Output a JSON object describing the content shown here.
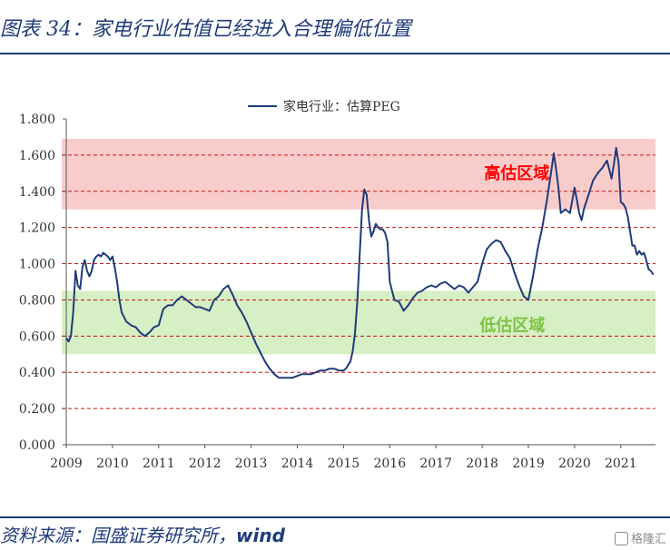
{
  "header": {
    "title": "图表 34：家电行业估值已经进入合理偏低位置"
  },
  "footer": {
    "source_prefix": "资料来源：国盛证券研究所，",
    "source_brand": "wind"
  },
  "watermark": {
    "text": "格隆汇"
  },
  "colors": {
    "line": "#1f3b7a",
    "high_band": "#f9cccc",
    "low_band": "#d6efc4",
    "ref_line": "#cc1111",
    "high_label": "#ff0000",
    "low_label": "#7cc242",
    "axis": "#555555"
  },
  "chart_data": {
    "type": "line",
    "title": "",
    "xlabel": "",
    "ylabel": "",
    "legend": {
      "position": "top",
      "entries": [
        "家电行业：估算PEG"
      ]
    },
    "x_ticks": [
      "2009",
      "2010",
      "2011",
      "2012",
      "2013",
      "2014",
      "2015",
      "2016",
      "2017",
      "2018",
      "2019",
      "2020",
      "2021"
    ],
    "y_ticks": [
      "0.000",
      "0.200",
      "0.400",
      "0.600",
      "0.800",
      "1.000",
      "1.200",
      "1.400",
      "1.600",
      "1.800"
    ],
    "xlim": [
      2009.0,
      2021.75
    ],
    "ylim": [
      0,
      1.8
    ],
    "grid": false,
    "reference_lines": [
      0.2,
      0.4,
      0.6,
      0.8,
      1.0,
      1.2,
      1.4,
      1.6
    ],
    "bands": [
      {
        "name": "高估区域",
        "from": 1.3,
        "to": 1.69
      },
      {
        "name": "低估区域",
        "from": 0.5,
        "to": 0.85
      }
    ],
    "series": [
      {
        "name": "家电行业：估算PEG",
        "x": [
          2009.0,
          2009.05,
          2009.1,
          2009.15,
          2009.2,
          2009.25,
          2009.3,
          2009.35,
          2009.4,
          2009.45,
          2009.5,
          2009.55,
          2009.6,
          2009.65,
          2009.7,
          2009.75,
          2009.8,
          2009.85,
          2009.9,
          2009.95,
          2010.0,
          2010.05,
          2010.1,
          2010.15,
          2010.2,
          2010.3,
          2010.4,
          2010.5,
          2010.6,
          2010.7,
          2010.8,
          2010.9,
          2011.0,
          2011.1,
          2011.2,
          2011.3,
          2011.4,
          2011.5,
          2011.6,
          2011.7,
          2011.8,
          2011.9,
          2012.0,
          2012.1,
          2012.2,
          2012.3,
          2012.4,
          2012.5,
          2012.6,
          2012.7,
          2012.8,
          2012.9,
          2013.0,
          2013.1,
          2013.2,
          2013.3,
          2013.4,
          2013.5,
          2013.6,
          2013.7,
          2013.8,
          2013.9,
          2014.0,
          2014.1,
          2014.2,
          2014.3,
          2014.4,
          2014.5,
          2014.6,
          2014.7,
          2014.8,
          2014.9,
          2015.0,
          2015.05,
          2015.1,
          2015.15,
          2015.2,
          2015.25,
          2015.3,
          2015.35,
          2015.4,
          2015.45,
          2015.5,
          2015.55,
          2015.6,
          2015.65,
          2015.7,
          2015.75,
          2015.8,
          2015.85,
          2015.9,
          2015.95,
          2016.0,
          2016.1,
          2016.2,
          2016.3,
          2016.4,
          2016.5,
          2016.6,
          2016.7,
          2016.8,
          2016.9,
          2017.0,
          2017.1,
          2017.2,
          2017.3,
          2017.4,
          2017.5,
          2017.6,
          2017.7,
          2017.8,
          2017.9,
          2018.0,
          2018.1,
          2018.2,
          2018.3,
          2018.4,
          2018.5,
          2018.6,
          2018.7,
          2018.8,
          2018.9,
          2019.0,
          2019.1,
          2019.2,
          2019.3,
          2019.4,
          2019.5,
          2019.55,
          2019.6,
          2019.65,
          2019.7,
          2019.8,
          2019.9,
          2020.0,
          2020.05,
          2020.1,
          2020.15,
          2020.2,
          2020.3,
          2020.4,
          2020.5,
          2020.6,
          2020.7,
          2020.75,
          2020.8,
          2020.85,
          2020.9,
          2020.95,
          2021.0,
          2021.05,
          2021.1,
          2021.15,
          2021.2,
          2021.25,
          2021.3,
          2021.35,
          2021.4,
          2021.45,
          2021.5,
          2021.55,
          2021.6,
          2021.65,
          2021.7
        ],
        "values": [
          0.59,
          0.57,
          0.6,
          0.73,
          0.96,
          0.88,
          0.86,
          0.98,
          1.02,
          0.96,
          0.93,
          0.96,
          1.02,
          1.04,
          1.05,
          1.04,
          1.06,
          1.05,
          1.04,
          1.02,
          1.04,
          0.98,
          0.9,
          0.8,
          0.73,
          0.68,
          0.66,
          0.65,
          0.62,
          0.6,
          0.62,
          0.65,
          0.66,
          0.75,
          0.77,
          0.77,
          0.8,
          0.82,
          0.8,
          0.78,
          0.76,
          0.76,
          0.75,
          0.74,
          0.8,
          0.82,
          0.86,
          0.88,
          0.83,
          0.77,
          0.73,
          0.68,
          0.62,
          0.56,
          0.51,
          0.46,
          0.42,
          0.39,
          0.37,
          0.37,
          0.37,
          0.37,
          0.38,
          0.39,
          0.39,
          0.39,
          0.4,
          0.41,
          0.41,
          0.42,
          0.42,
          0.41,
          0.41,
          0.42,
          0.44,
          0.46,
          0.52,
          0.62,
          0.8,
          1.05,
          1.3,
          1.41,
          1.38,
          1.24,
          1.15,
          1.18,
          1.22,
          1.2,
          1.19,
          1.19,
          1.17,
          1.12,
          0.9,
          0.8,
          0.79,
          0.74,
          0.77,
          0.81,
          0.84,
          0.85,
          0.87,
          0.88,
          0.87,
          0.89,
          0.9,
          0.88,
          0.86,
          0.88,
          0.87,
          0.84,
          0.87,
          0.9,
          1.0,
          1.08,
          1.11,
          1.13,
          1.12,
          1.07,
          1.03,
          0.95,
          0.88,
          0.82,
          0.8,
          0.93,
          1.08,
          1.2,
          1.35,
          1.52,
          1.61,
          1.52,
          1.42,
          1.28,
          1.3,
          1.28,
          1.42,
          1.35,
          1.28,
          1.24,
          1.3,
          1.38,
          1.46,
          1.5,
          1.53,
          1.57,
          1.52,
          1.47,
          1.55,
          1.64,
          1.56,
          1.34,
          1.33,
          1.31,
          1.26,
          1.18,
          1.1,
          1.1,
          1.05,
          1.07,
          1.05,
          1.06,
          1.02,
          0.97,
          0.96,
          0.94
        ]
      }
    ],
    "band_labels": [
      {
        "text": "高估区域",
        "x": 2018.75,
        "y": 1.5
      },
      {
        "text": "低估区域",
        "x": 2018.65,
        "y": 0.66
      }
    ]
  }
}
